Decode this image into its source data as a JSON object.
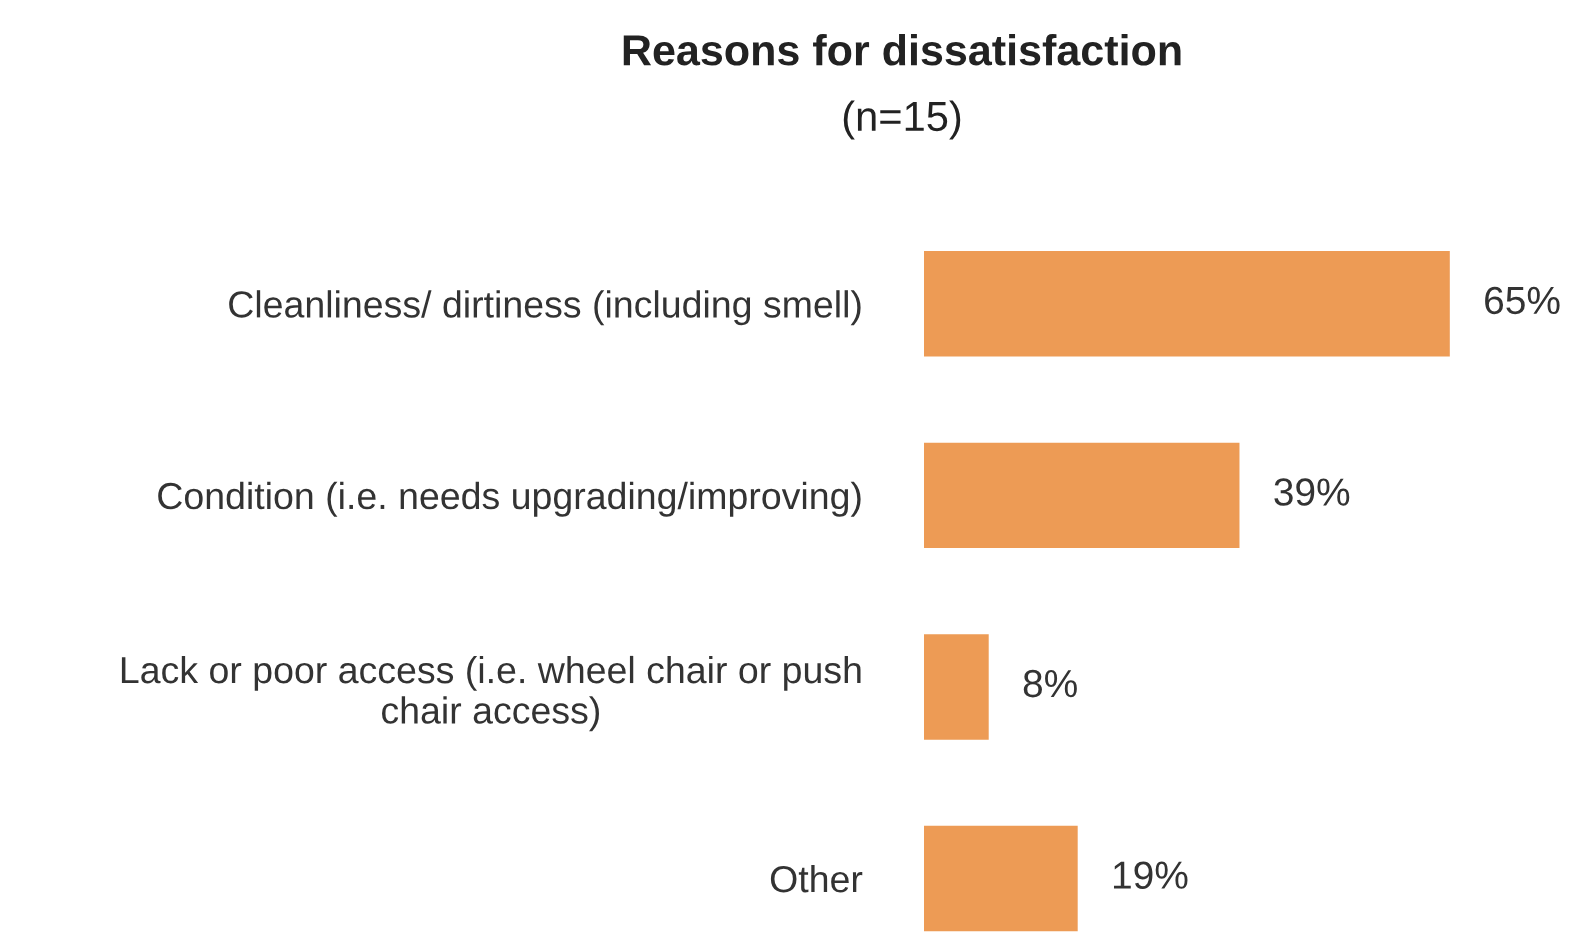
{
  "chart_data": {
    "type": "bar",
    "orientation": "horizontal",
    "title": "Reasons for dissatisfaction",
    "subtitle": "(n=15)",
    "categories": [
      "Cleanliness/ dirtiness (including smell)",
      "Condition (i.e. needs upgrading/improving)",
      "Lack or poor access (i.e. wheel chair or push chair access)",
      "Other"
    ],
    "values": [
      65,
      39,
      8,
      19
    ],
    "value_labels": [
      "65%",
      "39%",
      "8%",
      "19%"
    ],
    "color": "#ed9b55",
    "grid": false,
    "legend": false
  }
}
